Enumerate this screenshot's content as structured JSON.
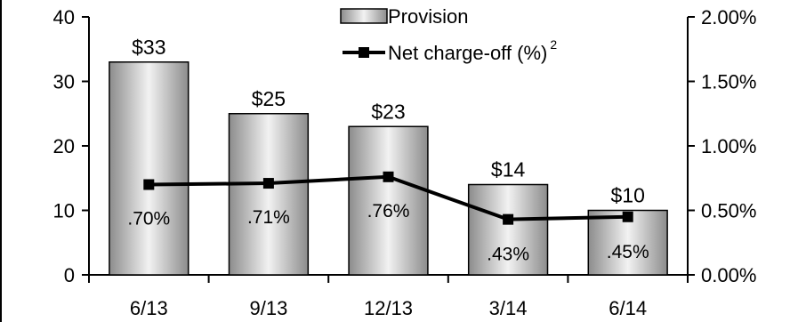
{
  "chart_data": {
    "type": "bar",
    "categories": [
      "6/13",
      "9/13",
      "12/13",
      "3/14",
      "6/14"
    ],
    "series": [
      {
        "name": "Provision",
        "type": "bar",
        "axis": "left",
        "values": [
          33,
          25,
          23,
          14,
          10
        ],
        "labels": [
          "$33",
          "$25",
          "$23",
          "$14",
          "$10"
        ]
      },
      {
        "name": "Net charge-off (%)",
        "name_superscript": "2",
        "type": "line",
        "axis": "right",
        "values": [
          0.7,
          0.71,
          0.76,
          0.43,
          0.45
        ],
        "labels": [
          ".70%",
          ".71%",
          ".76%",
          ".43%",
          ".45%"
        ]
      }
    ],
    "y_left": {
      "ticks": [
        "0",
        "10",
        "20",
        "30",
        "40"
      ],
      "ylim": [
        0,
        40
      ]
    },
    "y_right": {
      "ticks": [
        "0.00%",
        "0.50%",
        "1.00%",
        "1.50%",
        "2.00%"
      ],
      "ylim": [
        0,
        2.0
      ]
    },
    "grid": false,
    "legend_position": "top-center",
    "colors": {
      "bar_fill_center": "#f2f2f2",
      "bar_fill_edge": "#8c8c8c",
      "bar_stroke": "#000000",
      "line": "#000000",
      "marker": "#000000"
    }
  }
}
